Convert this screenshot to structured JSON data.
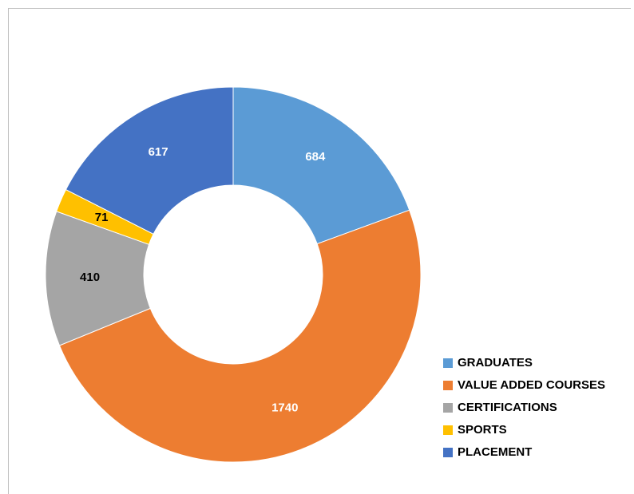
{
  "chart_data": {
    "type": "donut",
    "categories": [
      "GRADUATES",
      "VALUE ADDED COURSES",
      "CERTIFICATIONS",
      "SPORTS",
      "PLACEMENT"
    ],
    "values": [
      684,
      1740,
      410,
      71,
      617
    ],
    "colors": [
      "#5b9bd5",
      "#ed7d31",
      "#a5a5a5",
      "#ffc000",
      "#4472c4"
    ],
    "label_colors": [
      "#ffffff",
      "#ffffff",
      "#000000",
      "#000000",
      "#ffffff"
    ],
    "legend": "bottom-right"
  }
}
